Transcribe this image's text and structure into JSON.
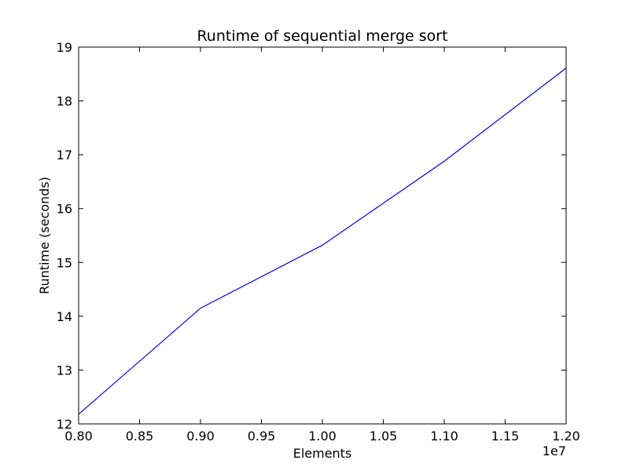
{
  "chart_data": {
    "type": "line",
    "title": "Runtime of sequential merge sort",
    "xlabel": "Elements",
    "ylabel": "Runtime (seconds)",
    "x_offset_label": "1e7",
    "xlim": [
      0.8,
      1.2
    ],
    "ylim": [
      12,
      19
    ],
    "x_ticks": [
      "0.80",
      "0.85",
      "0.90",
      "0.95",
      "1.00",
      "1.05",
      "1.10",
      "1.15",
      "1.20"
    ],
    "y_ticks": [
      "12",
      "13",
      "14",
      "15",
      "16",
      "17",
      "18",
      "19"
    ],
    "grid": false,
    "series": [
      {
        "color": "#0000ff",
        "x": [
          0.8,
          0.9,
          1.0,
          1.1,
          1.2
        ],
        "y": [
          12.18,
          14.15,
          15.32,
          16.88,
          18.61
        ]
      }
    ]
  }
}
